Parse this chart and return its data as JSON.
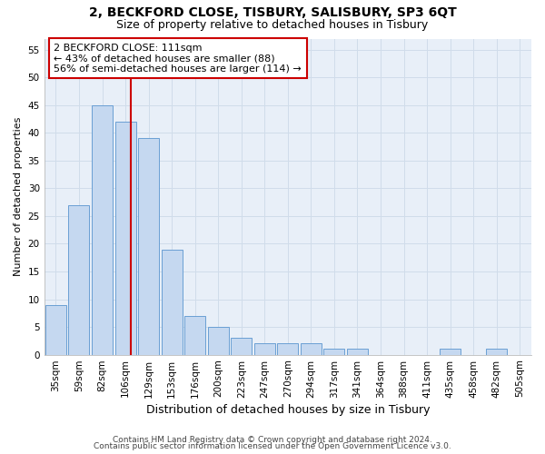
{
  "title1": "2, BECKFORD CLOSE, TISBURY, SALISBURY, SP3 6QT",
  "title2": "Size of property relative to detached houses in Tisbury",
  "xlabel": "Distribution of detached houses by size in Tisbury",
  "ylabel": "Number of detached properties",
  "categories": [
    "35sqm",
    "59sqm",
    "82sqm",
    "106sqm",
    "129sqm",
    "153sqm",
    "176sqm",
    "200sqm",
    "223sqm",
    "247sqm",
    "270sqm",
    "294sqm",
    "317sqm",
    "341sqm",
    "364sqm",
    "388sqm",
    "411sqm",
    "435sqm",
    "458sqm",
    "482sqm",
    "505sqm"
  ],
  "values": [
    9,
    27,
    45,
    42,
    39,
    19,
    7,
    5,
    3,
    2,
    2,
    2,
    1,
    1,
    0,
    0,
    0,
    1,
    0,
    1,
    0
  ],
  "bar_color": "#c5d8f0",
  "bar_edge_color": "#6a9fd4",
  "grid_color": "#d0dcea",
  "background_color": "#e8eff8",
  "vline_color": "#cc0000",
  "annotation_text": "2 BECKFORD CLOSE: 111sqm\n← 43% of detached houses are smaller (88)\n56% of semi-detached houses are larger (114) →",
  "annotation_box_facecolor": "#ffffff",
  "annotation_box_edgecolor": "#cc0000",
  "ylim": [
    0,
    57
  ],
  "yticks": [
    0,
    5,
    10,
    15,
    20,
    25,
    30,
    35,
    40,
    45,
    50,
    55
  ],
  "footer1": "Contains HM Land Registry data © Crown copyright and database right 2024.",
  "footer2": "Contains public sector information licensed under the Open Government Licence v3.0.",
  "title1_fontsize": 10,
  "title2_fontsize": 9,
  "xlabel_fontsize": 9,
  "ylabel_fontsize": 8,
  "tick_fontsize": 7.5,
  "annotation_fontsize": 8,
  "footer_fontsize": 6.5
}
